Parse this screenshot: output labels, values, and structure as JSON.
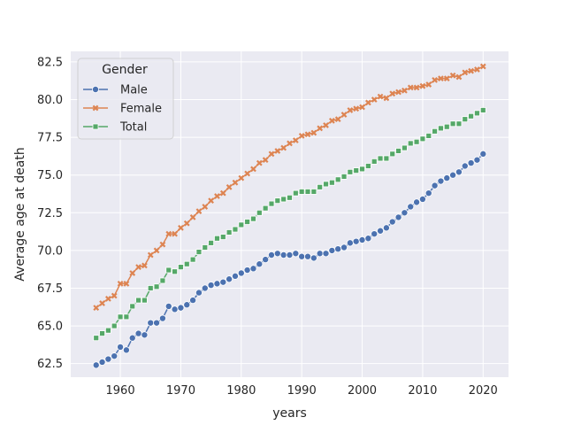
{
  "chart_data": {
    "type": "line",
    "xlabel": "years",
    "ylabel": "Average age at death",
    "xlim": [
      1951.8,
      2024.2
    ],
    "ylim": [
      61.6,
      83.2
    ],
    "xticks": [
      1960,
      1970,
      1980,
      1990,
      2000,
      2010,
      2020
    ],
    "yticks": [
      62.5,
      65.0,
      67.5,
      70.0,
      72.5,
      75.0,
      77.5,
      80.0,
      82.5
    ],
    "xtick_labels": [
      "1960",
      "1970",
      "1980",
      "1990",
      "2000",
      "2010",
      "2020"
    ],
    "ytick_labels": [
      "62.5",
      "65.0",
      "67.5",
      "70.0",
      "72.5",
      "75.0",
      "77.5",
      "80.0",
      "82.5"
    ],
    "grid": true,
    "background": "#eaeaf2",
    "legend": {
      "title": "Gender",
      "placement": "upper-left"
    },
    "x": [
      1956,
      1957,
      1958,
      1959,
      1960,
      1961,
      1962,
      1963,
      1964,
      1965,
      1966,
      1967,
      1968,
      1969,
      1970,
      1971,
      1972,
      1973,
      1974,
      1975,
      1976,
      1977,
      1978,
      1979,
      1980,
      1981,
      1982,
      1983,
      1984,
      1985,
      1986,
      1987,
      1988,
      1989,
      1990,
      1991,
      1992,
      1993,
      1994,
      1995,
      1996,
      1997,
      1998,
      1999,
      2000,
      2001,
      2002,
      2003,
      2004,
      2005,
      2006,
      2007,
      2008,
      2009,
      2010,
      2011,
      2012,
      2013,
      2014,
      2015,
      2016,
      2017,
      2018,
      2019,
      2020
    ],
    "series": [
      {
        "name": "Male",
        "color": "#4c72b0",
        "marker": "circle",
        "values": [
          62.4,
          62.6,
          62.8,
          63.0,
          63.6,
          63.4,
          64.2,
          64.5,
          64.4,
          65.2,
          65.2,
          65.5,
          66.3,
          66.1,
          66.2,
          66.4,
          66.7,
          67.2,
          67.5,
          67.7,
          67.8,
          67.9,
          68.1,
          68.3,
          68.5,
          68.7,
          68.8,
          69.1,
          69.4,
          69.7,
          69.8,
          69.7,
          69.7,
          69.8,
          69.6,
          69.6,
          69.5,
          69.8,
          69.8,
          70.0,
          70.1,
          70.2,
          70.5,
          70.6,
          70.7,
          70.8,
          71.1,
          71.3,
          71.5,
          71.9,
          72.2,
          72.5,
          72.9,
          73.2,
          73.4,
          73.8,
          74.3,
          74.6,
          74.8,
          75.0,
          75.2,
          75.6,
          75.8,
          76.0,
          76.4
        ]
      },
      {
        "name": "Female",
        "color": "#dd8452",
        "marker": "x",
        "values": [
          66.2,
          66.5,
          66.8,
          67.0,
          67.8,
          67.8,
          68.5,
          68.9,
          69.0,
          69.7,
          70.0,
          70.4,
          71.1,
          71.1,
          71.5,
          71.8,
          72.2,
          72.6,
          72.9,
          73.3,
          73.6,
          73.8,
          74.2,
          74.5,
          74.8,
          75.1,
          75.4,
          75.8,
          76.0,
          76.4,
          76.6,
          76.8,
          77.1,
          77.3,
          77.6,
          77.7,
          77.8,
          78.1,
          78.3,
          78.6,
          78.7,
          79.0,
          79.3,
          79.4,
          79.5,
          79.8,
          80.0,
          80.2,
          80.1,
          80.4,
          80.5,
          80.6,
          80.8,
          80.8,
          80.9,
          81.0,
          81.3,
          81.4,
          81.4,
          81.6,
          81.5,
          81.8,
          81.9,
          82.0,
          82.2
        ]
      },
      {
        "name": "Total",
        "color": "#55a868",
        "marker": "square",
        "values": [
          64.2,
          64.5,
          64.7,
          65.0,
          65.6,
          65.6,
          66.3,
          66.7,
          66.7,
          67.5,
          67.6,
          68.0,
          68.7,
          68.6,
          68.9,
          69.1,
          69.4,
          69.9,
          70.2,
          70.5,
          70.8,
          70.9,
          71.2,
          71.4,
          71.7,
          71.9,
          72.1,
          72.5,
          72.8,
          73.1,
          73.3,
          73.4,
          73.5,
          73.8,
          73.9,
          73.9,
          73.9,
          74.2,
          74.4,
          74.5,
          74.7,
          74.9,
          75.2,
          75.3,
          75.4,
          75.6,
          75.9,
          76.1,
          76.1,
          76.4,
          76.6,
          76.8,
          77.1,
          77.2,
          77.4,
          77.6,
          77.9,
          78.1,
          78.2,
          78.4,
          78.4,
          78.7,
          78.9,
          79.1,
          79.3
        ]
      }
    ]
  }
}
